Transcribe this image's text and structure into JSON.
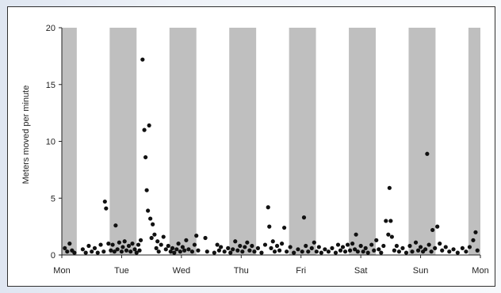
{
  "chart_data": {
    "type": "scatter",
    "title": "",
    "xlabel": "",
    "ylabel": "Meters moved per minute",
    "ylim": [
      0,
      20
    ],
    "yticks": [
      0,
      5,
      10,
      15,
      20
    ],
    "xlim": [
      0,
      7
    ],
    "xtick_labels": [
      "Mon",
      "Tue",
      "Wed",
      "Thu",
      "Fri",
      "Sat",
      "Sun",
      "Mon"
    ],
    "shaded_periods": [
      {
        "start": 0.0,
        "end": 0.25
      },
      {
        "start": 0.8,
        "end": 1.25
      },
      {
        "start": 1.8,
        "end": 2.25
      },
      {
        "start": 2.8,
        "end": 3.25
      },
      {
        "start": 3.8,
        "end": 4.25
      },
      {
        "start": 4.8,
        "end": 5.25
      },
      {
        "start": 5.8,
        "end": 6.25
      },
      {
        "start": 6.8,
        "end": 7.0
      }
    ],
    "grid": false,
    "legend": "none",
    "colors": {
      "shade": "#bfbfbf",
      "points": "#111111",
      "axis": "#222222"
    },
    "series": [
      {
        "points": [
          [
            0.05,
            0.6
          ],
          [
            0.09,
            0.3
          ],
          [
            0.13,
            1.0
          ],
          [
            0.17,
            0.4
          ],
          [
            0.21,
            0.2
          ],
          [
            0.35,
            0.5
          ],
          [
            0.4,
            0.2
          ],
          [
            0.45,
            0.8
          ],
          [
            0.5,
            0.3
          ],
          [
            0.55,
            0.6
          ],
          [
            0.6,
            0.2
          ],
          [
            0.65,
            0.9
          ],
          [
            0.7,
            0.3
          ],
          [
            0.72,
            4.7
          ],
          [
            0.74,
            4.1
          ],
          [
            0.78,
            1.0
          ],
          [
            0.82,
            0.4
          ],
          [
            0.85,
            0.9
          ],
          [
            0.88,
            0.3
          ],
          [
            0.9,
            2.6
          ],
          [
            0.93,
            0.5
          ],
          [
            0.96,
            1.1
          ],
          [
            1.0,
            0.3
          ],
          [
            1.02,
            0.7
          ],
          [
            1.05,
            1.2
          ],
          [
            1.08,
            0.4
          ],
          [
            1.12,
            0.8
          ],
          [
            1.15,
            0.3
          ],
          [
            1.18,
            1.0
          ],
          [
            1.22,
            0.5
          ],
          [
            1.25,
            0.2
          ],
          [
            1.28,
            0.9
          ],
          [
            1.3,
            0.4
          ],
          [
            1.32,
            1.3
          ],
          [
            1.35,
            17.2
          ],
          [
            1.38,
            11.0
          ],
          [
            1.4,
            8.6
          ],
          [
            1.42,
            5.7
          ],
          [
            1.44,
            3.9
          ],
          [
            1.46,
            11.4
          ],
          [
            1.48,
            3.2
          ],
          [
            1.5,
            1.5
          ],
          [
            1.52,
            2.7
          ],
          [
            1.55,
            1.8
          ],
          [
            1.58,
            0.6
          ],
          [
            1.6,
            1.2
          ],
          [
            1.62,
            0.3
          ],
          [
            1.66,
            0.9
          ],
          [
            1.7,
            1.6
          ],
          [
            1.74,
            0.5
          ],
          [
            1.78,
            0.8
          ],
          [
            1.82,
            0.3
          ],
          [
            1.85,
            0.6
          ],
          [
            1.88,
            0.2
          ],
          [
            1.92,
            0.5
          ],
          [
            1.95,
            1.0
          ],
          [
            1.98,
            0.3
          ],
          [
            2.02,
            0.7
          ],
          [
            2.05,
            0.4
          ],
          [
            2.08,
            1.3
          ],
          [
            2.12,
            0.5
          ],
          [
            2.18,
            0.3
          ],
          [
            2.22,
            0.9
          ],
          [
            2.25,
            1.7
          ],
          [
            2.28,
            0.4
          ],
          [
            2.4,
            1.5
          ],
          [
            2.43,
            0.3
          ],
          [
            2.55,
            0.2
          ],
          [
            2.6,
            0.9
          ],
          [
            2.63,
            0.4
          ],
          [
            2.66,
            0.7
          ],
          [
            2.72,
            0.3
          ],
          [
            2.78,
            0.6
          ],
          [
            2.82,
            0.2
          ],
          [
            2.86,
            0.5
          ],
          [
            2.9,
            1.2
          ],
          [
            2.94,
            0.4
          ],
          [
            2.98,
            0.8
          ],
          [
            3.02,
            0.3
          ],
          [
            3.06,
            0.7
          ],
          [
            3.1,
            1.1
          ],
          [
            3.14,
            0.4
          ],
          [
            3.18,
            0.8
          ],
          [
            3.22,
            0.3
          ],
          [
            3.28,
            0.6
          ],
          [
            3.34,
            0.2
          ],
          [
            3.4,
            0.9
          ],
          [
            3.45,
            4.2
          ],
          [
            3.47,
            2.5
          ],
          [
            3.5,
            0.6
          ],
          [
            3.53,
            1.2
          ],
          [
            3.56,
            0.3
          ],
          [
            3.6,
            0.8
          ],
          [
            3.64,
            0.4
          ],
          [
            3.68,
            1.0
          ],
          [
            3.72,
            2.4
          ],
          [
            3.76,
            0.3
          ],
          [
            3.82,
            0.7
          ],
          [
            3.88,
            0.2
          ],
          [
            3.95,
            0.5
          ],
          [
            4.02,
            0.3
          ],
          [
            4.05,
            3.3
          ],
          [
            4.08,
            0.8
          ],
          [
            4.12,
            0.3
          ],
          [
            4.18,
            0.6
          ],
          [
            4.22,
            1.1
          ],
          [
            4.26,
            0.3
          ],
          [
            4.3,
            0.7
          ],
          [
            4.34,
            0.2
          ],
          [
            4.4,
            0.5
          ],
          [
            4.46,
            0.3
          ],
          [
            4.52,
            0.6
          ],
          [
            4.58,
            0.2
          ],
          [
            4.62,
            0.9
          ],
          [
            4.66,
            0.4
          ],
          [
            4.7,
            0.7
          ],
          [
            4.74,
            0.3
          ],
          [
            4.78,
            0.9
          ],
          [
            4.82,
            0.4
          ],
          [
            4.86,
            1.0
          ],
          [
            4.9,
            0.5
          ],
          [
            4.92,
            1.8
          ],
          [
            4.95,
            0.3
          ],
          [
            5.0,
            0.8
          ],
          [
            5.04,
            0.3
          ],
          [
            5.08,
            0.6
          ],
          [
            5.12,
            0.2
          ],
          [
            5.18,
            0.9
          ],
          [
            5.22,
            0.4
          ],
          [
            5.26,
            1.3
          ],
          [
            5.3,
            0.5
          ],
          [
            5.34,
            0.2
          ],
          [
            5.38,
            0.8
          ],
          [
            5.42,
            3.0
          ],
          [
            5.46,
            1.8
          ],
          [
            5.48,
            5.9
          ],
          [
            5.5,
            3.0
          ],
          [
            5.52,
            1.6
          ],
          [
            5.56,
            0.4
          ],
          [
            5.6,
            0.8
          ],
          [
            5.64,
            0.3
          ],
          [
            5.7,
            0.6
          ],
          [
            5.76,
            0.2
          ],
          [
            5.82,
            0.8
          ],
          [
            5.86,
            0.3
          ],
          [
            5.92,
            1.1
          ],
          [
            5.96,
            0.4
          ],
          [
            6.0,
            0.7
          ],
          [
            6.04,
            0.3
          ],
          [
            6.08,
            0.5
          ],
          [
            6.11,
            8.9
          ],
          [
            6.14,
            0.9
          ],
          [
            6.18,
            0.3
          ],
          [
            6.2,
            2.2
          ],
          [
            6.24,
            0.6
          ],
          [
            6.28,
            2.5
          ],
          [
            6.32,
            1.0
          ],
          [
            6.36,
            0.4
          ],
          [
            6.42,
            0.7
          ],
          [
            6.48,
            0.3
          ],
          [
            6.55,
            0.5
          ],
          [
            6.62,
            0.2
          ],
          [
            6.7,
            0.6
          ],
          [
            6.76,
            0.3
          ],
          [
            6.82,
            0.7
          ],
          [
            6.88,
            1.3
          ],
          [
            6.92,
            2.0
          ],
          [
            6.95,
            0.4
          ]
        ]
      }
    ]
  }
}
